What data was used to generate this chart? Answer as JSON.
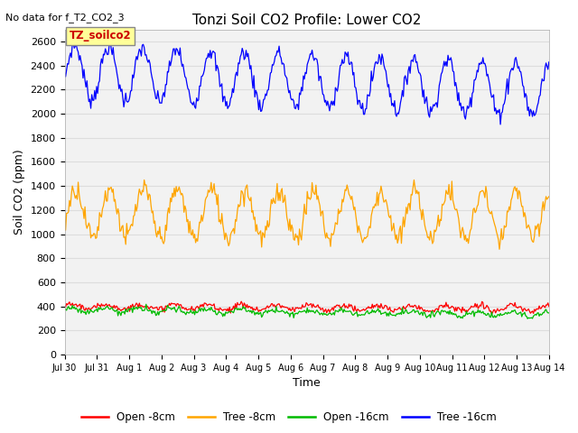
{
  "title": "Tonzi Soil CO2 Profile: Lower CO2",
  "subtitle": "No data for f_T2_CO2_3",
  "ylabel": "Soil CO2 (ppm)",
  "xlabel": "Time",
  "ylim": [
    0,
    2700
  ],
  "yticks": [
    0,
    200,
    400,
    600,
    800,
    1000,
    1200,
    1400,
    1600,
    1800,
    2000,
    2200,
    2400,
    2600
  ],
  "legend_labels": [
    "Open -8cm",
    "Tree -8cm",
    "Open -16cm",
    "Tree -16cm"
  ],
  "legend_colors": [
    "#ff0000",
    "#ffa500",
    "#00bb00",
    "#0000ff"
  ],
  "tz_soilco2_label": "TZ_soilco2",
  "tz_box_color": "#ffff99",
  "tz_text_color": "#cc0000",
  "fig_bg_color": "#ffffff",
  "plot_bg_color": "#f2f2f2",
  "grid_color": "#dddddd",
  "n_points": 500,
  "x_start": 0,
  "x_end": 15.0,
  "xtick_labels": [
    "Jul 30",
    "Jul 31",
    "Aug 1",
    "Aug 2",
    "Aug 3",
    "Aug 4",
    "Aug 5",
    "Aug 6",
    "Aug 7",
    "Aug 8",
    "Aug 9",
    "Aug 10",
    "Aug 11",
    "Aug 12",
    "Aug 13",
    "Aug 14"
  ],
  "xtick_positions": [
    0,
    1,
    2,
    3,
    4,
    5,
    6,
    7,
    8,
    9,
    10,
    11,
    12,
    13,
    14,
    15
  ]
}
